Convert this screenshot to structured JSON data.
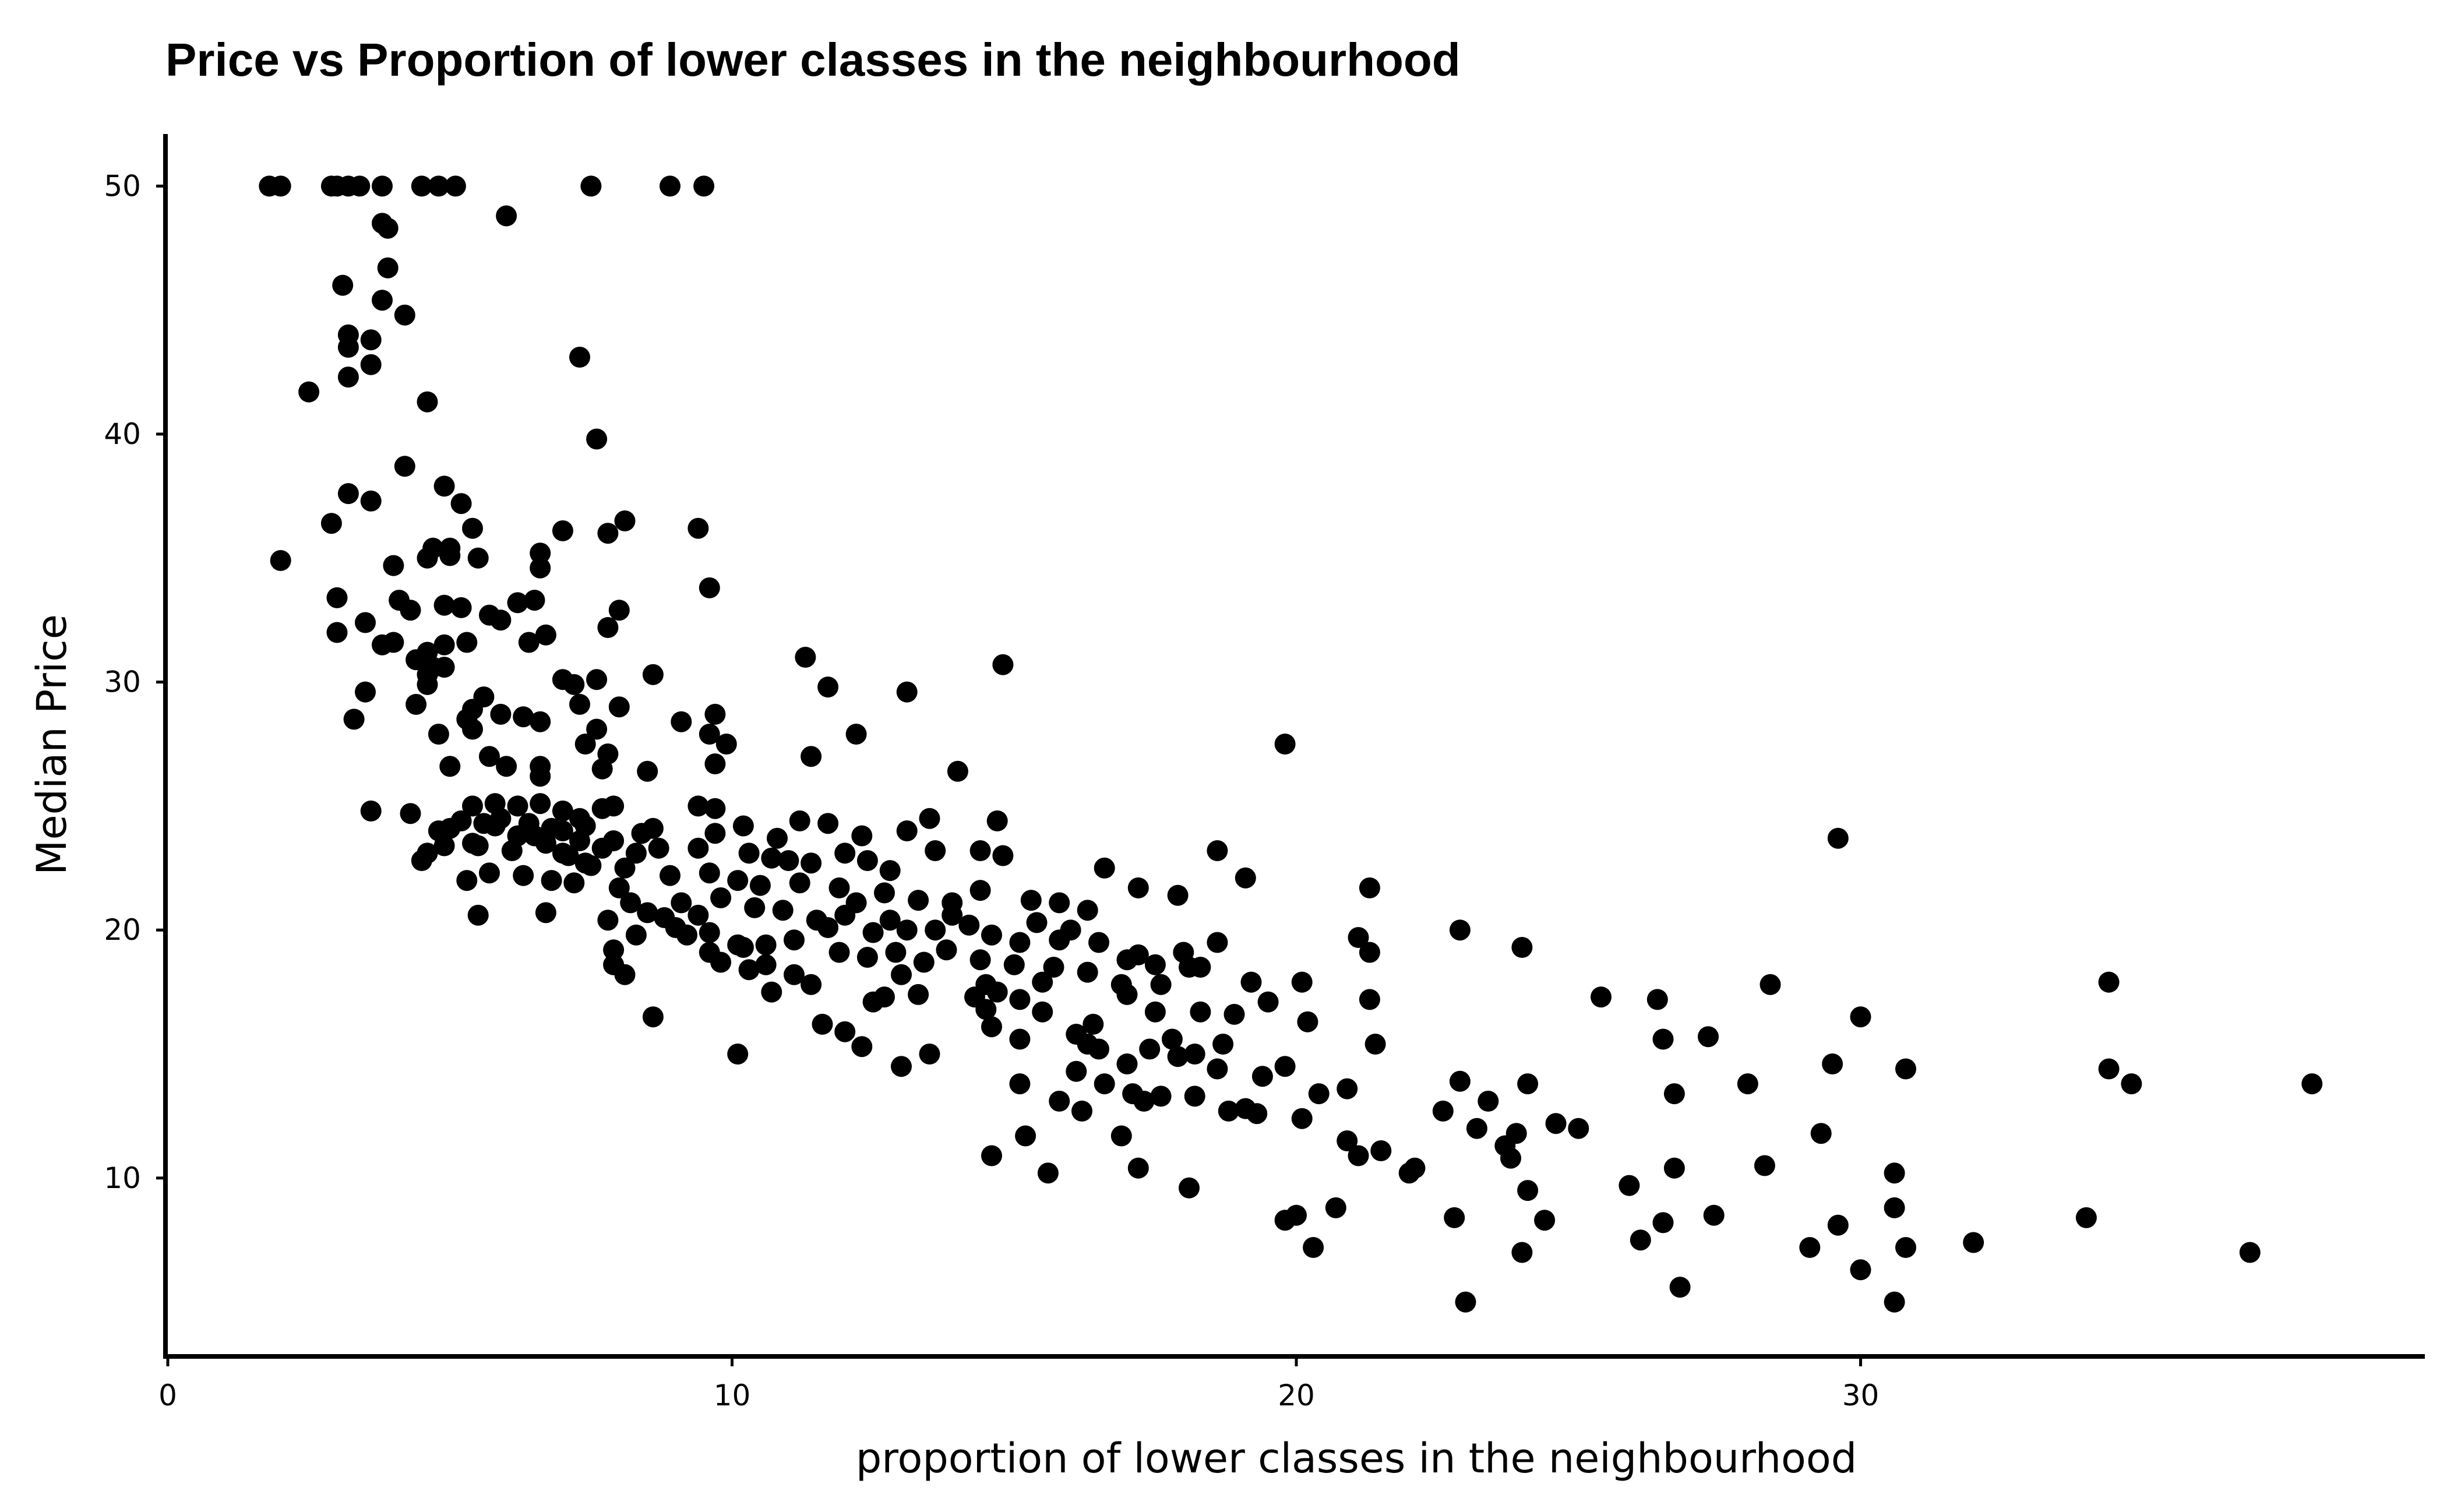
{
  "chart_data": {
    "type": "scatter",
    "title": "Price vs Proportion of lower classes in the neighbourhood",
    "xlabel": "proportion of lower classes in the neighbourhood",
    "ylabel": "Median Price",
    "xlim": [
      0,
      40
    ],
    "ylim": [
      2.9,
      52.1
    ],
    "xticks": [
      0,
      10,
      20,
      30
    ],
    "yticks": [
      10,
      20,
      30,
      40,
      50
    ],
    "grid": false,
    "legend": "none",
    "point_color": "#000000",
    "points": [
      [
        1.8,
        50
      ],
      [
        2.0,
        50
      ],
      [
        2.9,
        50
      ],
      [
        3.0,
        50
      ],
      [
        3.2,
        50
      ],
      [
        3.4,
        50
      ],
      [
        3.8,
        50
      ],
      [
        4.5,
        50
      ],
      [
        4.8,
        50
      ],
      [
        5.1,
        50
      ],
      [
        7.5,
        50
      ],
      [
        8.9,
        50
      ],
      [
        9.5,
        50
      ],
      [
        6.0,
        48.8
      ],
      [
        3.8,
        48.5
      ],
      [
        3.9,
        48.3
      ],
      [
        3.9,
        46.7
      ],
      [
        3.1,
        46
      ],
      [
        3.8,
        45.4
      ],
      [
        4.2,
        44.8
      ],
      [
        3.2,
        44
      ],
      [
        3.2,
        43.5
      ],
      [
        3.6,
        43.8
      ],
      [
        3.6,
        42.8
      ],
      [
        3.2,
        42.3
      ],
      [
        7.3,
        43.1
      ],
      [
        2.5,
        41.7
      ],
      [
        4.6,
        41.3
      ],
      [
        7.6,
        39.8
      ],
      [
        4.2,
        38.7
      ],
      [
        4.9,
        37.9
      ],
      [
        3.2,
        37.6
      ],
      [
        3.6,
        37.3
      ],
      [
        5.2,
        37.2
      ],
      [
        2.9,
        36.4
      ],
      [
        5.4,
        36.2
      ],
      [
        9.4,
        36.2
      ],
      [
        7.0,
        36.1
      ],
      [
        8.1,
        36.5
      ],
      [
        7.8,
        36
      ],
      [
        4.7,
        35.4
      ],
      [
        5.0,
        35.4
      ],
      [
        6.6,
        35.2
      ],
      [
        2.0,
        34.9
      ],
      [
        4.6,
        35
      ],
      [
        5.0,
        35.1
      ],
      [
        5.5,
        35.0
      ],
      [
        6.6,
        34.6
      ],
      [
        4.0,
        34.7
      ],
      [
        9.6,
        33.8
      ],
      [
        3.0,
        33.4
      ],
      [
        4.1,
        33.3
      ],
      [
        6.2,
        33.2
      ],
      [
        6.5,
        33.3
      ],
      [
        4.9,
        33.1
      ],
      [
        5.2,
        33
      ],
      [
        4.3,
        32.9
      ],
      [
        5.7,
        32.7
      ],
      [
        8.0,
        32.9
      ],
      [
        5.9,
        32.5
      ],
      [
        3.5,
        32.4
      ],
      [
        3.0,
        32
      ],
      [
        6.7,
        31.9
      ],
      [
        7.8,
        32.2
      ],
      [
        5.3,
        31.6
      ],
      [
        6.4,
        31.6
      ],
      [
        3.8,
        31.5
      ],
      [
        4.0,
        31.6
      ],
      [
        4.9,
        31.5
      ],
      [
        4.6,
        31.2
      ],
      [
        4.4,
        30.9
      ],
      [
        4.7,
        30.6
      ],
      [
        4.6,
        30.3
      ],
      [
        4.9,
        30.6
      ],
      [
        11.3,
        31
      ],
      [
        14.8,
        30.7
      ],
      [
        8.6,
        30.3
      ],
      [
        7.0,
        30.1
      ],
      [
        7.2,
        29.9
      ],
      [
        7.6,
        30.1
      ],
      [
        11.7,
        29.8
      ],
      [
        13.1,
        29.6
      ],
      [
        4.6,
        29.9
      ],
      [
        5.6,
        29.4
      ],
      [
        3.5,
        29.6
      ],
      [
        8.0,
        29
      ],
      [
        7.3,
        29.1
      ],
      [
        5.4,
        28.9
      ],
      [
        4.4,
        29.1
      ],
      [
        9.1,
        28.4
      ],
      [
        9.7,
        28.7
      ],
      [
        6.6,
        28.4
      ],
      [
        5.3,
        28.5
      ],
      [
        5.9,
        28.7
      ],
      [
        6.3,
        28.6
      ],
      [
        3.3,
        28.5
      ],
      [
        5.4,
        28.1
      ],
      [
        7.6,
        28.1
      ],
      [
        9.6,
        27.9
      ],
      [
        12.2,
        27.9
      ],
      [
        4.8,
        27.9
      ],
      [
        7.4,
        27.5
      ],
      [
        9.9,
        27.5
      ],
      [
        19.8,
        27.5
      ],
      [
        7.8,
        27.1
      ],
      [
        5.7,
        27
      ],
      [
        6.6,
        26.6
      ],
      [
        5.0,
        26.6
      ],
      [
        9.7,
        26.7
      ],
      [
        11.4,
        27
      ],
      [
        7.7,
        26.5
      ],
      [
        6.0,
        26.6
      ],
      [
        14.0,
        26.4
      ],
      [
        8.5,
        26.4
      ],
      [
        6.6,
        26.2
      ],
      [
        3.6,
        24.8
      ],
      [
        7.7,
        24.9
      ],
      [
        4.3,
        24.7
      ],
      [
        5.4,
        25
      ],
      [
        5.8,
        25.1
      ],
      [
        6.2,
        25
      ],
      [
        6.6,
        25.1
      ],
      [
        9.4,
        25
      ],
      [
        7.0,
        24.8
      ],
      [
        7.3,
        24.5
      ],
      [
        7.9,
        25
      ],
      [
        13.5,
        24.5
      ],
      [
        14.7,
        24.4
      ],
      [
        9.7,
        24.9
      ],
      [
        11.2,
        24.4
      ],
      [
        8.6,
        24.1
      ],
      [
        10.2,
        24.2
      ],
      [
        5.0,
        24.1
      ],
      [
        5.8,
        24.2
      ],
      [
        6.4,
        24.3
      ],
      [
        6.8,
        24.1
      ],
      [
        7.0,
        24
      ],
      [
        7.4,
        24.2
      ],
      [
        11.7,
        24.3
      ],
      [
        13.1,
        24
      ],
      [
        12.3,
        23.8
      ],
      [
        9.7,
        23.9
      ],
      [
        8.4,
        23.9
      ],
      [
        6.5,
        23.8
      ],
      [
        7.3,
        23.6
      ],
      [
        10.8,
        23.7
      ],
      [
        7.9,
        23.6
      ],
      [
        5.4,
        23.5
      ],
      [
        4.5,
        22.8
      ],
      [
        4.9,
        23.4
      ],
      [
        5.5,
        23.4
      ],
      [
        6.1,
        23.2
      ],
      [
        7.0,
        23.1
      ],
      [
        7.7,
        23.3
      ],
      [
        8.3,
        23.1
      ],
      [
        8.7,
        23.3
      ],
      [
        9.4,
        23.3
      ],
      [
        10.3,
        23.1
      ],
      [
        10.7,
        22.9
      ],
      [
        11.0,
        22.8
      ],
      [
        11.4,
        22.7
      ],
      [
        12.0,
        23.1
      ],
      [
        12.4,
        22.8
      ],
      [
        12.8,
        22.4
      ],
      [
        13.6,
        23.2
      ],
      [
        14.4,
        23.2
      ],
      [
        14.8,
        23
      ],
      [
        16.6,
        22.5
      ],
      [
        17.2,
        21.7
      ],
      [
        17.9,
        21.4
      ],
      [
        18.6,
        23.2
      ],
      [
        19.1,
        22.1
      ],
      [
        21.3,
        21.7
      ],
      [
        5.3,
        22
      ],
      [
        5.7,
        22.3
      ],
      [
        6.3,
        22.2
      ],
      [
        6.8,
        22
      ],
      [
        7.4,
        22.7
      ],
      [
        8.1,
        22.5
      ],
      [
        8.9,
        22.2
      ],
      [
        9.6,
        22.3
      ],
      [
        10.1,
        22
      ],
      [
        10.5,
        21.8
      ],
      [
        11.2,
        21.9
      ],
      [
        11.9,
        21.7
      ],
      [
        12.2,
        21.1
      ],
      [
        12.7,
        21.5
      ],
      [
        13.3,
        21.2
      ],
      [
        13.9,
        21.1
      ],
      [
        14.4,
        21.6
      ],
      [
        15.3,
        21.2
      ],
      [
        15.8,
        21.1
      ],
      [
        16.3,
        20.8
      ],
      [
        9.1,
        21.1
      ],
      [
        9.4,
        20.6
      ],
      [
        9.8,
        21.3
      ],
      [
        10.4,
        20.9
      ],
      [
        10.9,
        20.8
      ],
      [
        11.5,
        20.4
      ],
      [
        11.7,
        20.1
      ],
      [
        12.0,
        20.6
      ],
      [
        12.5,
        19.9
      ],
      [
        12.8,
        20.4
      ],
      [
        13.1,
        20
      ],
      [
        13.6,
        20
      ],
      [
        13.9,
        20.6
      ],
      [
        14.2,
        20.2
      ],
      [
        14.6,
        19.8
      ],
      [
        15.1,
        19.5
      ],
      [
        15.4,
        20.3
      ],
      [
        15.8,
        19.6
      ],
      [
        16.0,
        20
      ],
      [
        16.5,
        19.5
      ],
      [
        17.0,
        18.8
      ],
      [
        17.2,
        19
      ],
      [
        17.5,
        18.6
      ],
      [
        18.0,
        19.1
      ],
      [
        18.3,
        18.5
      ],
      [
        18.6,
        19.5
      ],
      [
        19.2,
        17.9
      ],
      [
        20.1,
        17.9
      ],
      [
        21.1,
        19.7
      ],
      [
        21.3,
        19.1
      ],
      [
        22.9,
        20
      ],
      [
        24.0,
        19.3
      ],
      [
        25.4,
        17.3
      ],
      [
        26.4,
        17.2
      ],
      [
        28.4,
        17.8
      ],
      [
        30.0,
        16.5
      ],
      [
        34.4,
        17.9
      ],
      [
        5.5,
        20.6
      ],
      [
        7.8,
        20.4
      ],
      [
        8.3,
        19.8
      ],
      [
        8.8,
        20.5
      ],
      [
        9.2,
        19.8
      ],
      [
        9.6,
        19.1
      ],
      [
        10.2,
        19.3
      ],
      [
        10.6,
        19.4
      ],
      [
        11.1,
        19.6
      ],
      [
        11.9,
        19.1
      ],
      [
        12.4,
        18.9
      ],
      [
        12.9,
        19.1
      ],
      [
        13.4,
        18.7
      ],
      [
        13.8,
        19.2
      ],
      [
        14.4,
        18.8
      ],
      [
        15.0,
        18.6
      ],
      [
        15.7,
        18.5
      ],
      [
        16.3,
        18.3
      ],
      [
        16.9,
        17.8
      ],
      [
        17.6,
        17.8
      ],
      [
        18.1,
        18.5
      ],
      [
        7.9,
        19.2
      ],
      [
        7.9,
        18.6
      ],
      [
        8.1,
        18.2
      ],
      [
        8.6,
        16.5
      ],
      [
        9.8,
        18.7
      ],
      [
        10.3,
        18.4
      ],
      [
        10.7,
        17.5
      ],
      [
        11.6,
        16.2
      ],
      [
        12.3,
        15.3
      ],
      [
        12.7,
        17.3
      ],
      [
        13.3,
        17.4
      ],
      [
        14.5,
        16.8
      ],
      [
        15.1,
        17.2
      ],
      [
        15.5,
        16.7
      ],
      [
        16.4,
        16.2
      ],
      [
        17.0,
        17.4
      ],
      [
        17.5,
        16.7
      ],
      [
        18.3,
        16.7
      ],
      [
        18.9,
        16.6
      ],
      [
        19.5,
        17.1
      ],
      [
        20.2,
        16.3
      ],
      [
        21.3,
        17.2
      ],
      [
        12.0,
        15.9
      ],
      [
        13.0,
        14.5
      ],
      [
        13.5,
        15
      ],
      [
        14.6,
        16.1
      ],
      [
        15.1,
        15.6
      ],
      [
        16.1,
        14.3
      ],
      [
        16.5,
        15.2
      ],
      [
        17.0,
        14.6
      ],
      [
        17.4,
        15.2
      ],
      [
        17.9,
        14.9
      ],
      [
        18.2,
        15
      ],
      [
        18.7,
        15.4
      ],
      [
        19.4,
        14.1
      ],
      [
        19.8,
        14.5
      ],
      [
        20.4,
        13.4
      ],
      [
        20.9,
        13.6
      ],
      [
        21.4,
        15.4
      ],
      [
        22.9,
        13.9
      ],
      [
        23.4,
        13.1
      ],
      [
        24.1,
        13.8
      ],
      [
        26.5,
        15.6
      ],
      [
        27.3,
        15.7
      ],
      [
        28.0,
        13.8
      ],
      [
        29.5,
        14.6
      ],
      [
        30.8,
        14.4
      ],
      [
        34.4,
        14.4
      ],
      [
        34.8,
        13.8
      ],
      [
        38.0,
        13.8
      ],
      [
        10.1,
        15
      ],
      [
        15.1,
        13.8
      ],
      [
        15.8,
        13.1
      ],
      [
        16.2,
        12.7
      ],
      [
        16.6,
        13.8
      ],
      [
        17.1,
        13.4
      ],
      [
        17.6,
        13.3
      ],
      [
        18.2,
        13.3
      ],
      [
        18.8,
        12.7
      ],
      [
        19.3,
        12.6
      ],
      [
        20.1,
        12.4
      ],
      [
        20.9,
        11.5
      ],
      [
        21.5,
        11.1
      ],
      [
        22.1,
        10.4
      ],
      [
        22.6,
        12.7
      ],
      [
        23.2,
        12
      ],
      [
        23.7,
        11.3
      ],
      [
        24.6,
        12.2
      ],
      [
        25.0,
        12
      ],
      [
        26.7,
        13.4
      ],
      [
        28.3,
        10.5
      ],
      [
        29.3,
        11.8
      ],
      [
        16.9,
        11.7
      ],
      [
        15.2,
        11.7
      ],
      [
        14.6,
        10.9
      ],
      [
        15.6,
        10.2
      ],
      [
        17.2,
        10.4
      ],
      [
        18.1,
        9.6
      ],
      [
        19.8,
        8.3
      ],
      [
        20.0,
        8.5
      ],
      [
        20.3,
        7.2
      ],
      [
        20.7,
        8.8
      ],
      [
        22.8,
        8.4
      ],
      [
        23.0,
        5
      ],
      [
        24.0,
        7
      ],
      [
        24.4,
        8.3
      ],
      [
        24.1,
        9.5
      ],
      [
        26.1,
        7.5
      ],
      [
        25.9,
        9.7
      ],
      [
        26.8,
        5.6
      ],
      [
        27.4,
        8.5
      ],
      [
        29.1,
        7.2
      ],
      [
        29.6,
        8.1
      ],
      [
        30.0,
        6.3
      ],
      [
        30.6,
        5
      ],
      [
        30.8,
        7.2
      ],
      [
        32.0,
        7.4
      ],
      [
        34.0,
        8.4
      ],
      [
        36.9,
        7
      ],
      [
        26.5,
        8.2
      ],
      [
        26.7,
        10.4
      ],
      [
        30.6,
        10.2
      ],
      [
        30.6,
        8.8
      ],
      [
        29.6,
        23.7
      ],
      [
        22.0,
        10.2
      ],
      [
        21.1,
        10.9
      ],
      [
        23.9,
        11.8
      ],
      [
        23.8,
        10.8
      ],
      [
        19.1,
        12.8
      ],
      [
        17.3,
        13.1
      ],
      [
        16.3,
        15.4
      ],
      [
        16.1,
        15.8
      ],
      [
        17.8,
        15.6
      ],
      [
        18.6,
        14.4
      ],
      [
        15.5,
        17.9
      ],
      [
        14.7,
        17.5
      ],
      [
        14.3,
        17.3
      ],
      [
        14.5,
        17.8
      ],
      [
        13.0,
        18.2
      ],
      [
        12.5,
        17.1
      ],
      [
        11.4,
        17.8
      ],
      [
        11.1,
        18.2
      ],
      [
        10.6,
        18.6
      ],
      [
        10.1,
        19.4
      ],
      [
        9.6,
        19.9
      ],
      [
        9.0,
        20.1
      ],
      [
        8.5,
        20.7
      ],
      [
        8.0,
        21.7
      ],
      [
        7.5,
        22.6
      ],
      [
        7.1,
        23
      ],
      [
        6.7,
        23.5
      ],
      [
        6.2,
        23.8
      ],
      [
        5.9,
        24.5
      ],
      [
        5.6,
        24.3
      ],
      [
        5.2,
        24.4
      ],
      [
        4.8,
        24
      ],
      [
        4.6,
        23.1
      ],
      [
        6.7,
        20.7
      ],
      [
        7.2,
        21.9
      ],
      [
        8.2,
        21.1
      ]
    ]
  }
}
